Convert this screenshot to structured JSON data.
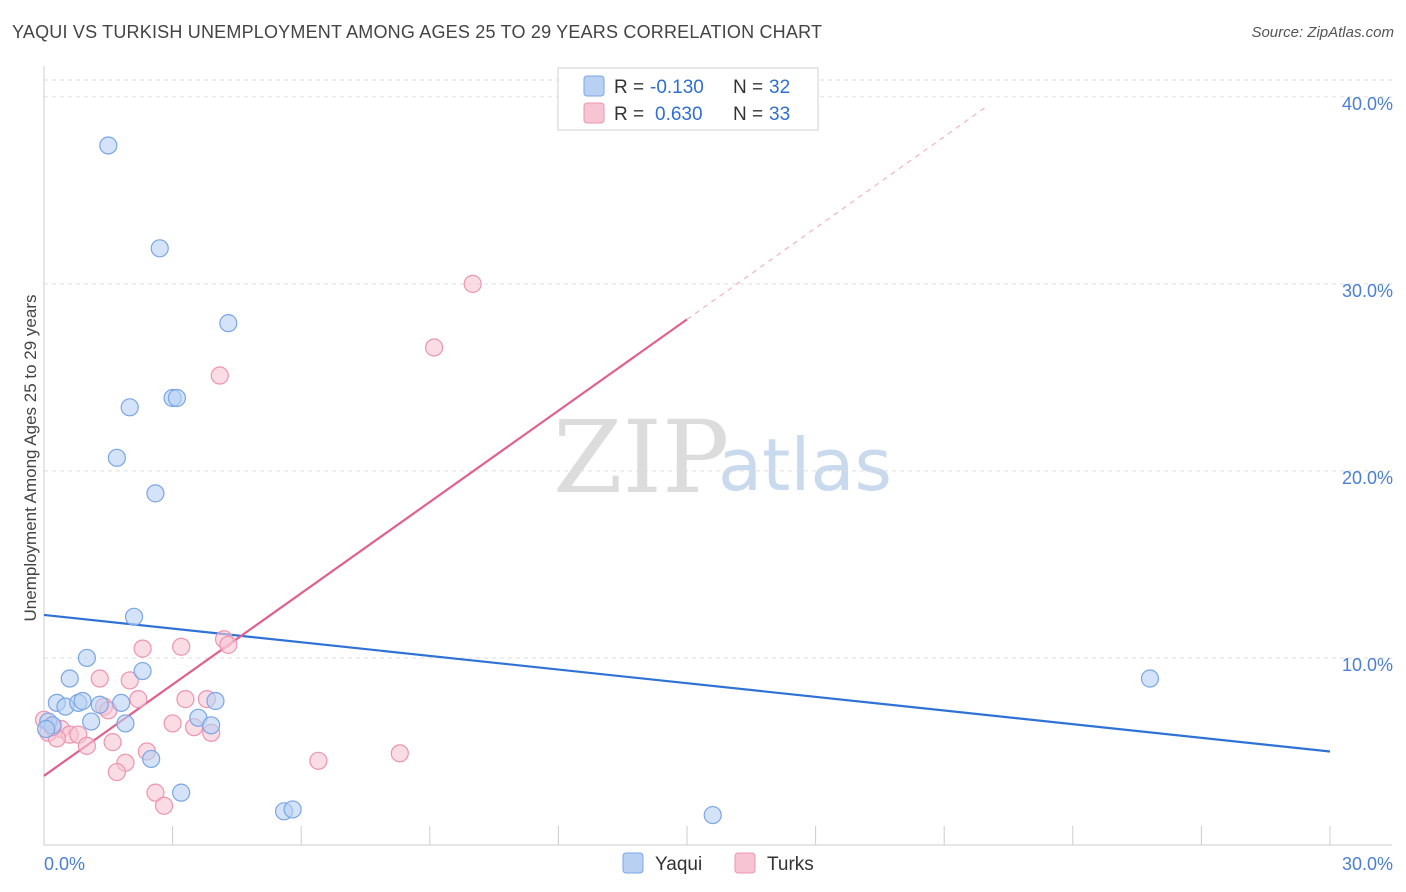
{
  "title": "YAQUI VS TURKISH UNEMPLOYMENT AMONG AGES 25 TO 29 YEARS CORRELATION CHART",
  "source": "Source: ZipAtlas.com",
  "watermark": {
    "zip": "ZIP",
    "atlas": "atlas"
  },
  "colors": {
    "yaqui_fill": "#b8d1f3",
    "yaqui_stroke": "#7aa6e6",
    "yaqui_line": "#2f72d6",
    "turks_fill": "#f7c4d3",
    "turks_stroke": "#ee94b0",
    "turks_line": "#e06090",
    "axis_text": "#4a7fd4",
    "grid": "#dddddd"
  },
  "legend": {
    "r_label": "R =",
    "n_label": "N =",
    "yaqui_r": "-0.130",
    "yaqui_n": "32",
    "turks_r": "0.630",
    "turks_n": "33"
  },
  "chart_data": {
    "type": "scatter",
    "title": "YAQUI VS TURKISH UNEMPLOYMENT AMONG AGES 25 TO 29 YEARS CORRELATION CHART",
    "xlabel": "",
    "ylabel": "Unemployment Among Ages 25 to 29 years",
    "xlim": [
      0,
      30
    ],
    "ylim": [
      0,
      40
    ],
    "x_tick_labels": [
      "0.0%",
      "30.0%"
    ],
    "y_ticks": [
      10,
      20,
      30,
      40
    ],
    "y_tick_labels": [
      "10.0%",
      "20.0%",
      "30.0%",
      "40.0%"
    ],
    "grid": true,
    "legend_position": "top-center",
    "series": [
      {
        "name": "Yaqui",
        "r": -0.13,
        "n": 32,
        "trend": {
          "x0": 0,
          "y0": 12.3,
          "x1": 30,
          "y1": 5.0
        },
        "points": [
          {
            "x": 1.5,
            "y": 37.4
          },
          {
            "x": 2.7,
            "y": 31.9
          },
          {
            "x": 4.3,
            "y": 27.9
          },
          {
            "x": 3.0,
            "y": 23.9
          },
          {
            "x": 3.1,
            "y": 23.9
          },
          {
            "x": 2.0,
            "y": 23.4
          },
          {
            "x": 1.7,
            "y": 20.7
          },
          {
            "x": 2.6,
            "y": 18.8
          },
          {
            "x": 2.1,
            "y": 12.2
          },
          {
            "x": 1.0,
            "y": 10.0
          },
          {
            "x": 0.6,
            "y": 8.9
          },
          {
            "x": 2.3,
            "y": 9.3
          },
          {
            "x": 0.3,
            "y": 7.6
          },
          {
            "x": 0.5,
            "y": 7.4
          },
          {
            "x": 0.8,
            "y": 7.6
          },
          {
            "x": 0.9,
            "y": 7.7
          },
          {
            "x": 1.3,
            "y": 7.5
          },
          {
            "x": 1.8,
            "y": 7.6
          },
          {
            "x": 4.0,
            "y": 7.7
          },
          {
            "x": 1.1,
            "y": 6.6
          },
          {
            "x": 1.9,
            "y": 6.5
          },
          {
            "x": 3.6,
            "y": 6.8
          },
          {
            "x": 3.9,
            "y": 6.4
          },
          {
            "x": 0.1,
            "y": 6.6
          },
          {
            "x": 0.2,
            "y": 6.4
          },
          {
            "x": 0.05,
            "y": 6.2
          },
          {
            "x": 2.5,
            "y": 4.6
          },
          {
            "x": 3.2,
            "y": 2.8
          },
          {
            "x": 5.6,
            "y": 1.8
          },
          {
            "x": 5.8,
            "y": 1.9
          },
          {
            "x": 15.6,
            "y": 1.6
          },
          {
            "x": 25.8,
            "y": 8.9
          }
        ]
      },
      {
        "name": "Turks",
        "r": 0.63,
        "n": 33,
        "trend": {
          "x0": 0,
          "y0": 3.7,
          "x1": 15,
          "y1": 28.1
        },
        "trend_dashed_extension": {
          "x0": 15,
          "y0": 28.1,
          "x1": 22,
          "y1": 39.5
        },
        "points": [
          {
            "x": 10.0,
            "y": 30.0
          },
          {
            "x": 9.1,
            "y": 26.6
          },
          {
            "x": 4.1,
            "y": 25.1
          },
          {
            "x": 4.2,
            "y": 11.0
          },
          {
            "x": 4.3,
            "y": 10.7
          },
          {
            "x": 2.3,
            "y": 10.5
          },
          {
            "x": 3.2,
            "y": 10.6
          },
          {
            "x": 1.3,
            "y": 8.9
          },
          {
            "x": 2.0,
            "y": 8.8
          },
          {
            "x": 2.2,
            "y": 7.8
          },
          {
            "x": 3.3,
            "y": 7.8
          },
          {
            "x": 3.8,
            "y": 7.8
          },
          {
            "x": 1.4,
            "y": 7.4
          },
          {
            "x": 1.5,
            "y": 7.2
          },
          {
            "x": 0.4,
            "y": 6.2
          },
          {
            "x": 0.6,
            "y": 5.9
          },
          {
            "x": 0.8,
            "y": 5.9
          },
          {
            "x": 0.1,
            "y": 6.0
          },
          {
            "x": 0.3,
            "y": 5.7
          },
          {
            "x": 0.2,
            "y": 6.3
          },
          {
            "x": 3.0,
            "y": 6.5
          },
          {
            "x": 3.5,
            "y": 6.3
          },
          {
            "x": 3.9,
            "y": 6.0
          },
          {
            "x": 1.0,
            "y": 5.3
          },
          {
            "x": 1.6,
            "y": 5.5
          },
          {
            "x": 2.4,
            "y": 5.0
          },
          {
            "x": 1.9,
            "y": 4.4
          },
          {
            "x": 1.7,
            "y": 3.9
          },
          {
            "x": 6.4,
            "y": 4.5
          },
          {
            "x": 8.3,
            "y": 4.9
          },
          {
            "x": 2.6,
            "y": 2.8
          },
          {
            "x": 2.8,
            "y": 2.1
          },
          {
            "x": 0.0,
            "y": 6.7
          }
        ]
      }
    ]
  }
}
